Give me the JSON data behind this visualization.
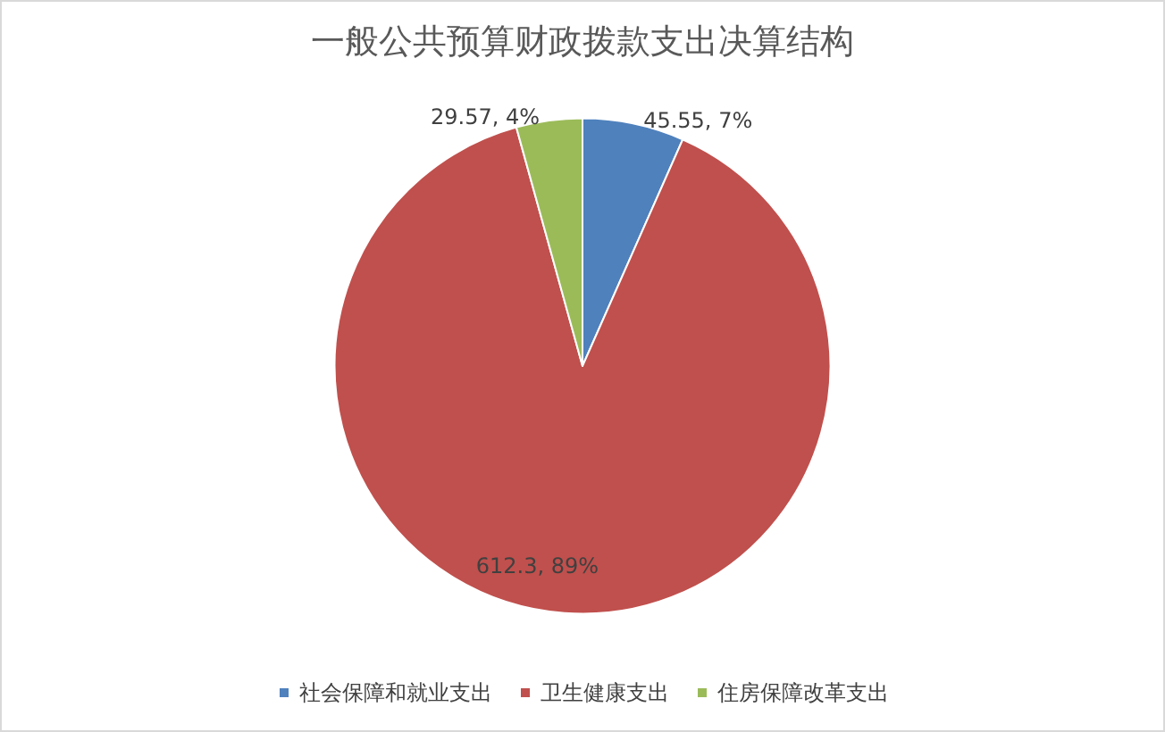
{
  "chart_data": {
    "type": "pie",
    "title": "一般公共预算财政拨款支出决算结构",
    "categories": [
      "社会保障和就业支出",
      "卫生健康支出",
      "住房保障改革支出"
    ],
    "values": [
      45.55,
      612.3,
      29.57
    ],
    "colors": [
      "#4f81bd",
      "#c0504d",
      "#9bbb59"
    ],
    "value_labels": [
      "45.55, 7%",
      "612.3, 89%",
      "29.57, 4%"
    ],
    "legend": "bottom"
  }
}
